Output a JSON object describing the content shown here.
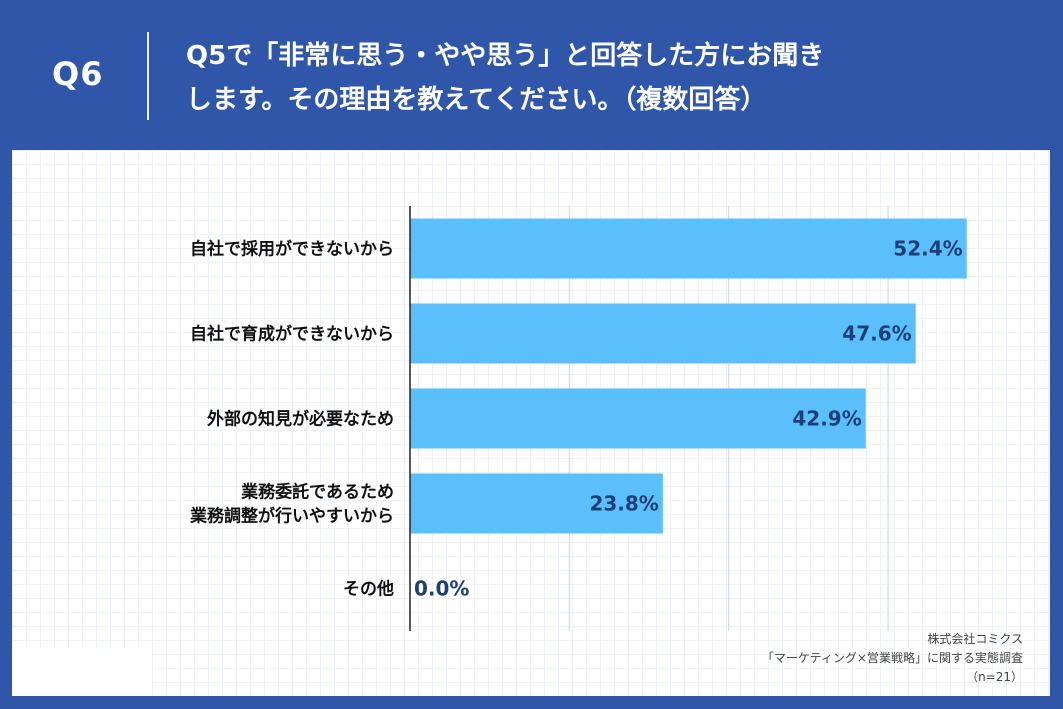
{
  "header": {
    "question_number": "Q6",
    "question_line1": "Q5で「非常に思う・やや思う」と回答した方にお聞き",
    "question_line2": "します。その理由を教えてください。（複数回答）"
  },
  "chart_data": {
    "type": "bar",
    "orientation": "horizontal",
    "categories": [
      [
        "自社で採用ができないから"
      ],
      [
        "自社で育成ができないから"
      ],
      [
        "外部の知見が必要なため"
      ],
      [
        "業務委託であるため",
        "業務調整が行いやすいから"
      ],
      [
        "その他"
      ]
    ],
    "values": [
      52.4,
      47.6,
      42.9,
      23.8,
      0.0
    ],
    "value_labels": [
      "52.4%",
      "47.6%",
      "42.9%",
      "23.8%",
      "0.0%"
    ],
    "unit": "%",
    "xlim": [
      0,
      60
    ],
    "grid": true,
    "bar_color": "#5bbffb"
  },
  "footer": {
    "company": "株式会社コミクス",
    "survey": "「マーケティング×営業戦略」に関する実態調査",
    "sample": "（n=21）"
  }
}
